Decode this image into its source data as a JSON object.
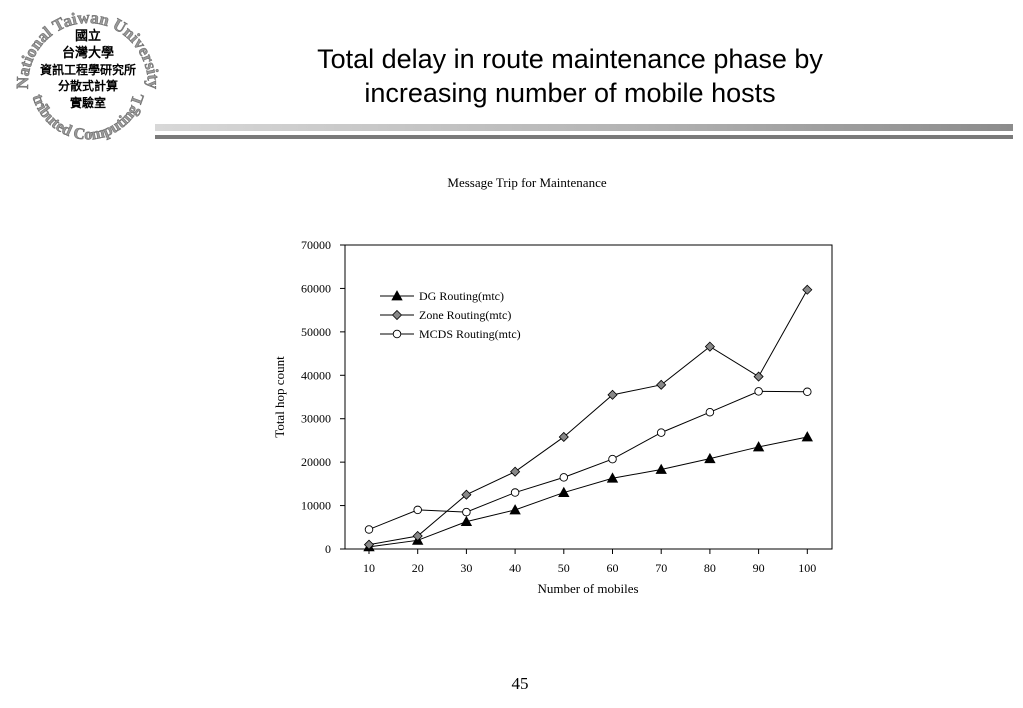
{
  "slide": {
    "title_line1": "Total delay in route maintenance phase by",
    "title_line2": "increasing number of mobile hosts",
    "page_number": "45"
  },
  "logo": {
    "arc_top": "National Taiwan University",
    "arc_bottom": "Distributed Computing Lab.",
    "lines": [
      "國立",
      "台灣大學",
      "資訊工程學研究所",
      "分散式計算",
      "實驗室"
    ]
  },
  "chart_data": {
    "type": "line",
    "title": "Message Trip for Maintenance",
    "xlabel": "Number of mobiles",
    "ylabel": "Total hop count",
    "x": [
      10,
      20,
      30,
      40,
      50,
      60,
      70,
      80,
      90,
      100
    ],
    "xlim": [
      10,
      100
    ],
    "ylim": [
      0,
      70000
    ],
    "yticks": [
      0,
      10000,
      20000,
      30000,
      40000,
      50000,
      60000,
      70000
    ],
    "xticks": [
      10,
      20,
      30,
      40,
      50,
      60,
      70,
      80,
      90,
      100
    ],
    "legend_position": "top-left",
    "grid": false,
    "series": [
      {
        "name": "DG Routing(mtc)",
        "marker": "triangle",
        "color": "#000000",
        "values": [
          500,
          2000,
          6300,
          9000,
          13000,
          16300,
          18300,
          20800,
          23500,
          25800
        ]
      },
      {
        "name": "Zone Routing(mtc)",
        "marker": "diamond",
        "color": "#888888",
        "values": [
          1000,
          3000,
          12500,
          17800,
          25800,
          35500,
          37800,
          46600,
          39700,
          59700
        ]
      },
      {
        "name": "MCDS Routing(mtc)",
        "marker": "circle",
        "color": "#ffffff",
        "values": [
          4500,
          9000,
          8500,
          13000,
          16500,
          20700,
          26800,
          31500,
          36300,
          36200
        ]
      }
    ]
  }
}
